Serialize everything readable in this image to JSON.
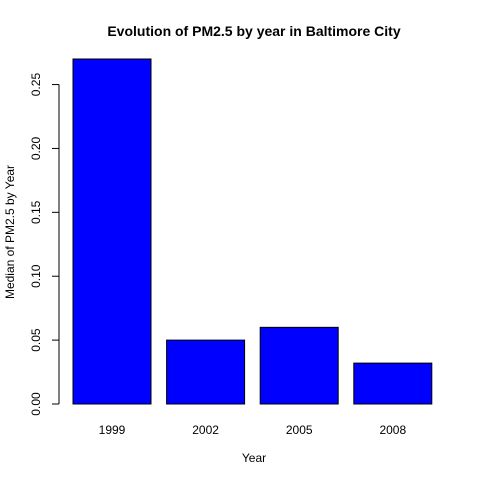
{
  "chart_data": {
    "type": "bar",
    "title": "Evolution of PM2.5 by year in Baltimore City",
    "xlabel": "Year",
    "ylabel": "Median of PM2.5 by Year",
    "categories": [
      "1999",
      "2002",
      "2005",
      "2008"
    ],
    "values": [
      0.27,
      0.05,
      0.06,
      0.032
    ],
    "ylim": [
      0,
      0.27
    ],
    "yticks": [
      "0.00",
      "0.05",
      "0.10",
      "0.15",
      "0.20",
      "0.25"
    ],
    "bar_color": "#0000ff",
    "bar_border": "#000000",
    "grid": false,
    "legend": "none"
  }
}
